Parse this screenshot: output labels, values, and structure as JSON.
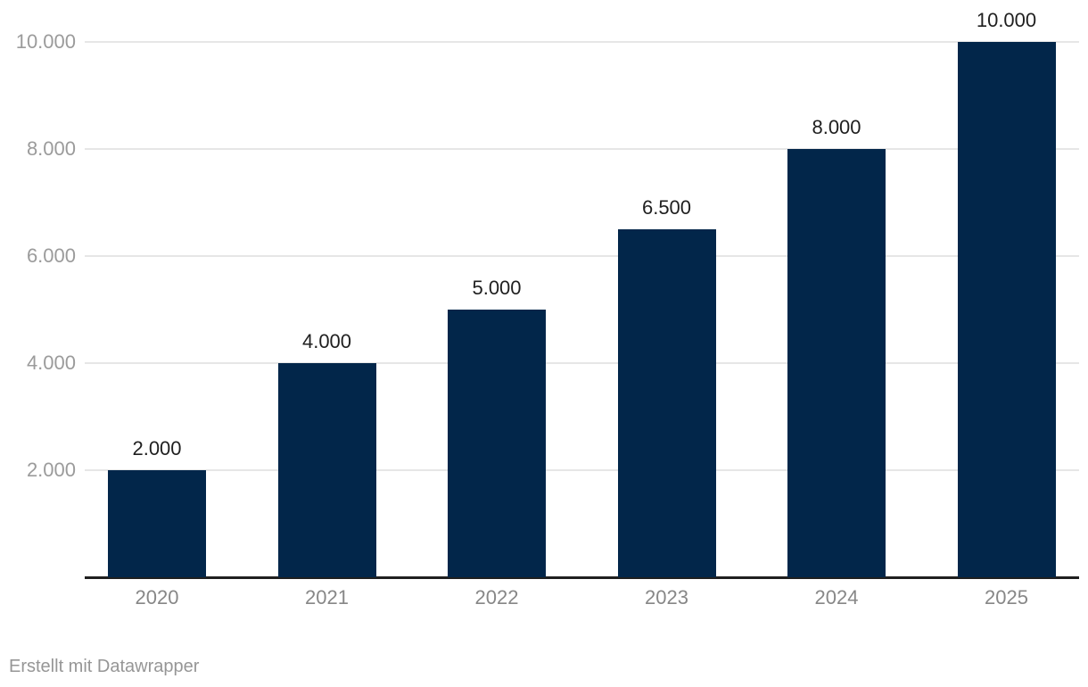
{
  "chart_data": {
    "type": "bar",
    "categories": [
      "2020",
      "2021",
      "2022",
      "2023",
      "2024",
      "2025"
    ],
    "values": [
      2000,
      4000,
      5000,
      6500,
      8000,
      10000
    ],
    "value_labels": [
      "2.000",
      "4.000",
      "5.000",
      "6.500",
      "8.000",
      "10.000"
    ],
    "y_ticks": [
      {
        "value": 2000,
        "label": "2.000"
      },
      {
        "value": 4000,
        "label": "4.000"
      },
      {
        "value": 6000,
        "label": "6.000"
      },
      {
        "value": 8000,
        "label": "8.000"
      },
      {
        "value": 10000,
        "label": "10.000"
      }
    ],
    "title": "",
    "xlabel": "",
    "ylabel": "",
    "ylim": [
      0,
      10000
    ],
    "grid": true,
    "legend": false,
    "bar_color": "#02264a",
    "gridline_color": "#e6e6e6",
    "baseline_color": "#1f1f1f",
    "y_tick_color": "#9b9b9b",
    "x_tick_color": "#878787",
    "value_label_color": "#1f1f1f"
  },
  "footer": {
    "attribution": "Erstellt mit Datawrapper"
  }
}
